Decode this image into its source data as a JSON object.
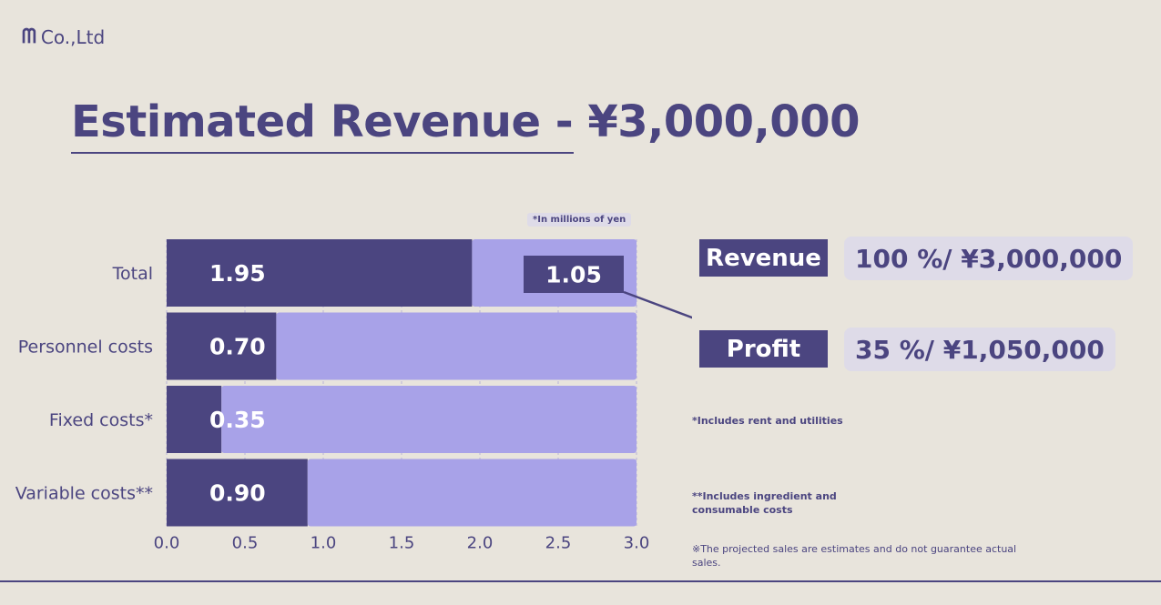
{
  "logo": {
    "mark": "ᗰ",
    "text": "Co.,Ltd"
  },
  "title": "Estimated Revenue - ¥3,000,000",
  "chart_note": "*In millions of yen",
  "chart_data": {
    "type": "bar",
    "orientation": "horizontal",
    "stacked": true,
    "categories": [
      "Total",
      "Personnel costs",
      "Fixed costs*",
      "Variable costs**"
    ],
    "series": [
      {
        "values": [
          1.95,
          0.7,
          0.35,
          0.9
        ],
        "color": "#4b4580"
      },
      {
        "values": [
          1.05,
          2.3,
          2.65,
          2.1
        ],
        "color": "#a8a2e8"
      }
    ],
    "data_labels": [
      "1.95",
      "0.70",
      "0.35",
      "0.90"
    ],
    "callout_label": "1.05",
    "xlim": [
      0,
      3.0
    ],
    "xticks": [
      "0.0",
      "0.5",
      "1.0",
      "1.5",
      "2.0",
      "2.5",
      "3.0"
    ],
    "grid": true
  },
  "summary": {
    "revenue_label": "Revenue",
    "revenue_value": "100 %/ ¥3,000,000",
    "profit_label": "Profit",
    "profit_value": "35 %/ ¥1,050,000"
  },
  "notes": {
    "fixed": "*Includes rent and utilities",
    "variable_line1": "**Includes ingredient and",
    "variable_line2": "consumable costs",
    "disclaimer_line1": "※The projected sales are estimates and do not guarantee actual",
    "disclaimer_line2": "sales."
  },
  "colors": {
    "dark": "#4b4580",
    "light": "#a8a2e8",
    "background": "#e8e4dc",
    "pill": "#dedbe8"
  }
}
